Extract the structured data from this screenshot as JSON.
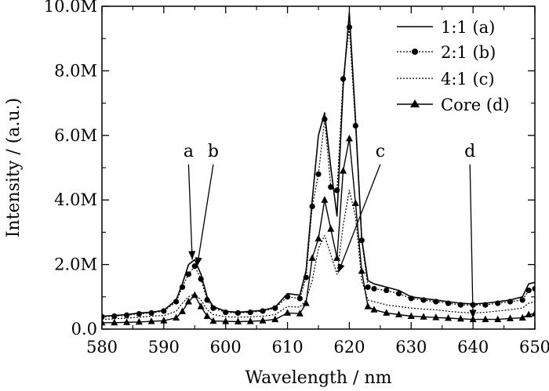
{
  "chart_data": {
    "type": "line",
    "title": "",
    "xlabel": "Wavelength / nm",
    "ylabel": "Intensity / (a.u.)",
    "xlim": [
      580,
      650
    ],
    "ylim": [
      0,
      10000000
    ],
    "x_ticks": [
      580,
      590,
      600,
      610,
      620,
      630,
      640,
      650
    ],
    "x_tick_labels": [
      "580",
      "590",
      "600",
      "610",
      "620",
      "630",
      "640",
      "650"
    ],
    "y_ticks": [
      0,
      2000000,
      4000000,
      6000000,
      8000000,
      10000000
    ],
    "y_tick_labels": [
      "0.0",
      "2.0M",
      "4.0M",
      "6.0M",
      "8.0M",
      "10.0M"
    ],
    "grid": false,
    "legend_position": "top-right",
    "x": [
      580,
      582,
      584,
      586,
      588,
      590,
      592,
      593,
      594,
      595,
      596,
      597,
      598,
      600,
      602,
      604,
      606,
      608,
      610,
      612,
      613,
      614,
      615,
      616,
      617,
      618,
      619,
      620,
      621,
      622,
      623,
      624,
      626,
      628,
      630,
      632,
      634,
      636,
      638,
      640,
      642,
      644,
      646,
      648,
      649,
      650
    ],
    "series": [
      {
        "name": "1:1 (a)",
        "style": "solid",
        "marker": "none",
        "values": [
          400000,
          420000,
          450000,
          500000,
          520000,
          580000,
          900000,
          1400000,
          2000000,
          2150000,
          1700000,
          1000000,
          700000,
          550000,
          520000,
          550000,
          580000,
          680000,
          1100000,
          1050000,
          1800000,
          4000000,
          6000000,
          6700000,
          5000000,
          3500000,
          7500000,
          9800000,
          6500000,
          2800000,
          1500000,
          1400000,
          1300000,
          1200000,
          1000000,
          950000,
          900000,
          850000,
          800000,
          780000,
          800000,
          850000,
          900000,
          1000000,
          1400000,
          1450000
        ]
      },
      {
        "name": "2:1 (b)",
        "style": "dotted",
        "marker": "circle",
        "values": [
          380000,
          400000,
          430000,
          470000,
          500000,
          560000,
          850000,
          1300000,
          1700000,
          1950000,
          1550000,
          900000,
          650000,
          520000,
          500000,
          520000,
          560000,
          650000,
          1000000,
          950000,
          1600000,
          3800000,
          4800000,
          6500000,
          4400000,
          4300000,
          7750000,
          9350000,
          6300000,
          2750000,
          1300000,
          1250000,
          1200000,
          1100000,
          950000,
          900000,
          850000,
          800000,
          750000,
          750000,
          750000,
          800000,
          850000,
          900000,
          1200000,
          1250000
        ]
      },
      {
        "name": "4:1 (c)",
        "style": "dotted",
        "marker": "none",
        "values": [
          300000,
          320000,
          340000,
          370000,
          400000,
          420000,
          550000,
          800000,
          1000000,
          1100000,
          900000,
          600000,
          450000,
          380000,
          370000,
          380000,
          400000,
          450000,
          700000,
          680000,
          900000,
          1500000,
          2500000,
          2900000,
          2300000,
          1700000,
          3200000,
          4300000,
          3500000,
          1500000,
          900000,
          850000,
          750000,
          700000,
          650000,
          620000,
          600000,
          550000,
          520000,
          500000,
          520000,
          560000,
          600000,
          650000,
          800000,
          850000
        ]
      },
      {
        "name": "Core (d)",
        "style": "solid",
        "marker": "triangle",
        "values": [
          200000,
          200000,
          210000,
          220000,
          240000,
          260000,
          350000,
          550000,
          850000,
          1050000,
          700000,
          400000,
          250000,
          240000,
          230000,
          240000,
          260000,
          300000,
          500000,
          480000,
          800000,
          2200000,
          2800000,
          4000000,
          3100000,
          2200000,
          4900000,
          5900000,
          3900000,
          1800000,
          700000,
          600000,
          500000,
          450000,
          400000,
          380000,
          360000,
          340000,
          320000,
          300000,
          300000,
          300000,
          330000,
          350000,
          450000,
          480000
        ]
      }
    ],
    "annotations": [
      {
        "text": "a",
        "x": 594.0,
        "y": 5200000,
        "arrow_to_x": 594.6,
        "arrow_to_y": 2150000
      },
      {
        "text": "b",
        "x": 598.0,
        "y": 5200000,
        "arrow_to_x": 595.4,
        "arrow_to_y": 1950000
      },
      {
        "text": "c",
        "x": 625.0,
        "y": 5200000,
        "arrow_to_x": 618.2,
        "arrow_to_y": 1750000
      },
      {
        "text": "d",
        "x": 639.5,
        "y": 5200000,
        "arrow_to_x": 640.0,
        "arrow_to_y": 330000
      }
    ]
  }
}
